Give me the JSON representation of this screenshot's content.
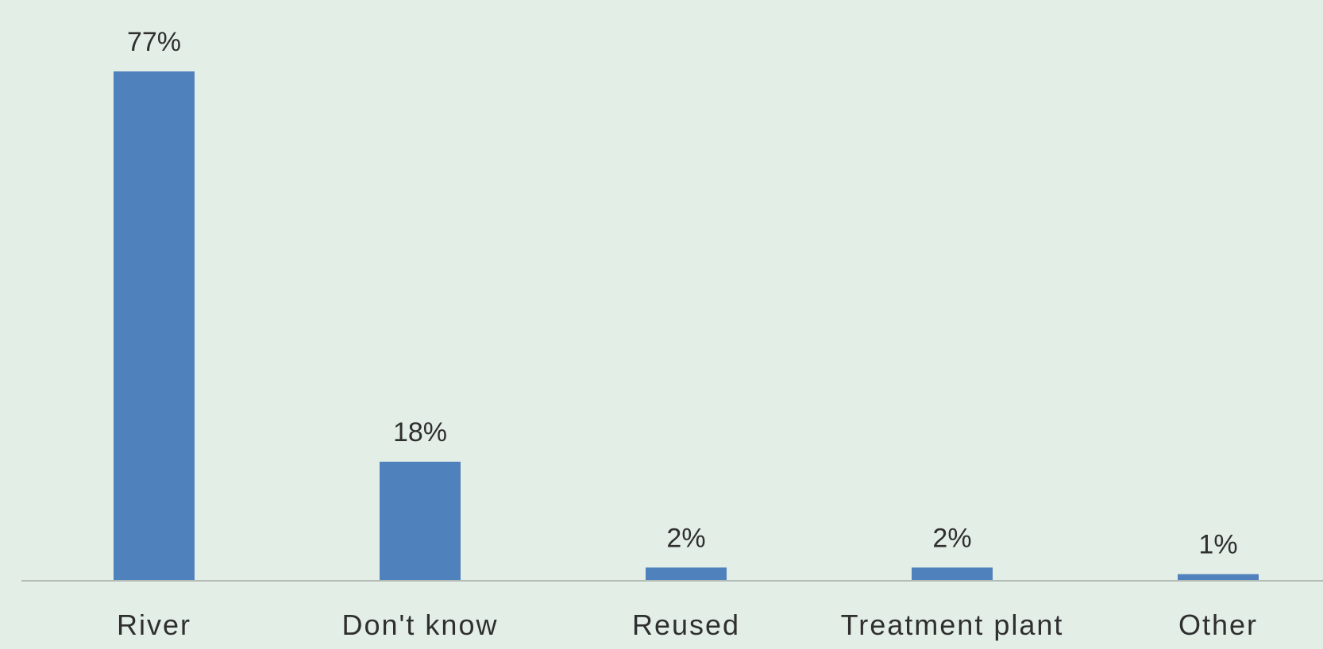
{
  "chart_data": {
    "type": "bar",
    "categories": [
      "River",
      "Don't know",
      "Reused",
      "Treatment plant",
      "Other"
    ],
    "values": [
      77,
      18,
      2,
      2,
      1
    ],
    "value_labels": [
      "77%",
      "18%",
      "2%",
      "2%",
      "1%"
    ],
    "unit": "%",
    "ylim": [
      0,
      77
    ],
    "grid": false,
    "legend": "none",
    "colors": {
      "bar": "#4f81bd",
      "axis": "#b4bab6",
      "background": "#e3efe6",
      "text": "#2f2f2f"
    }
  }
}
